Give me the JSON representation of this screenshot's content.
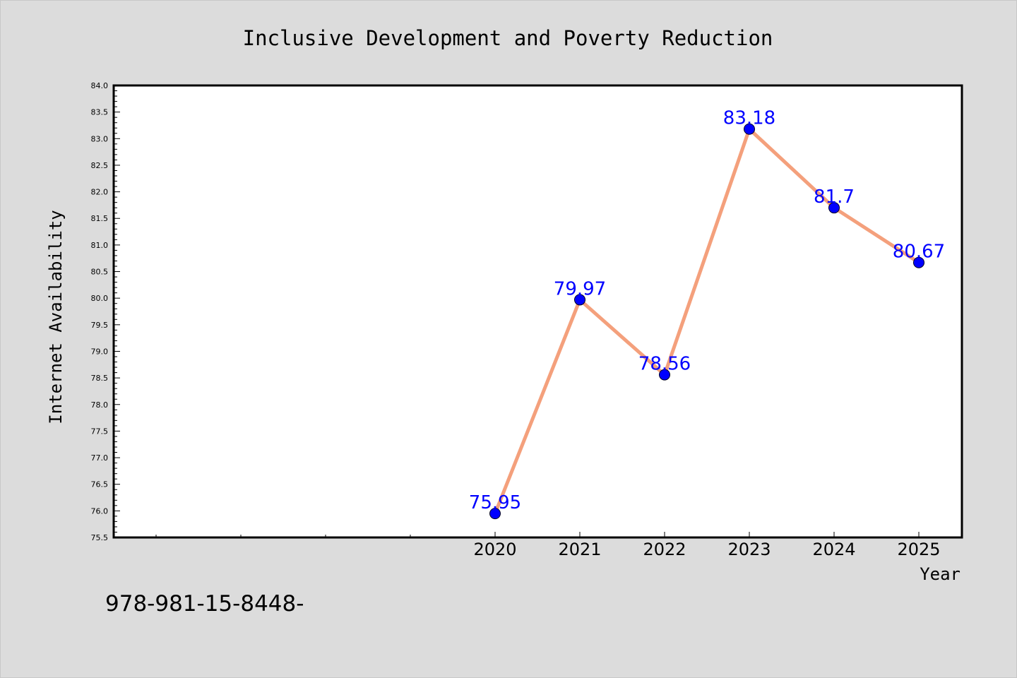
{
  "chart_data": {
    "type": "line",
    "title": "Inclusive Development and Poverty Reduction",
    "xlabel": "Year",
    "ylabel": "Internet Availability",
    "categories": [
      "2020",
      "2021",
      "2022",
      "2023",
      "2024",
      "2025"
    ],
    "series": [
      {
        "values": [
          75.95,
          79.97,
          78.56,
          83.18,
          81.7,
          80.67
        ],
        "labels": [
          "75.95",
          "79.97",
          "78.56",
          "83.18",
          "81.7",
          "80.67"
        ],
        "line_color": "#f4a07c",
        "marker_color": "#0000ff"
      }
    ],
    "ylim": [
      75.5,
      84.0
    ],
    "yticks": [
      "75.5",
      "76.0",
      "76.5",
      "77.0",
      "77.5",
      "78.0",
      "78.5",
      "79.0",
      "79.5",
      "80.0",
      "80.5",
      "81.0",
      "81.5",
      "82.0",
      "82.5",
      "83.0",
      "83.5",
      "84.0"
    ],
    "x_minor_ticks_before_first": 4,
    "data_label_color": "#0000ff",
    "grid": false,
    "legend": "none"
  },
  "footer": {
    "text": "978-981-15-8448-"
  },
  "colors": {
    "background": "#dcdcdc",
    "plot_background": "#ffffff",
    "axis": "#000000"
  }
}
